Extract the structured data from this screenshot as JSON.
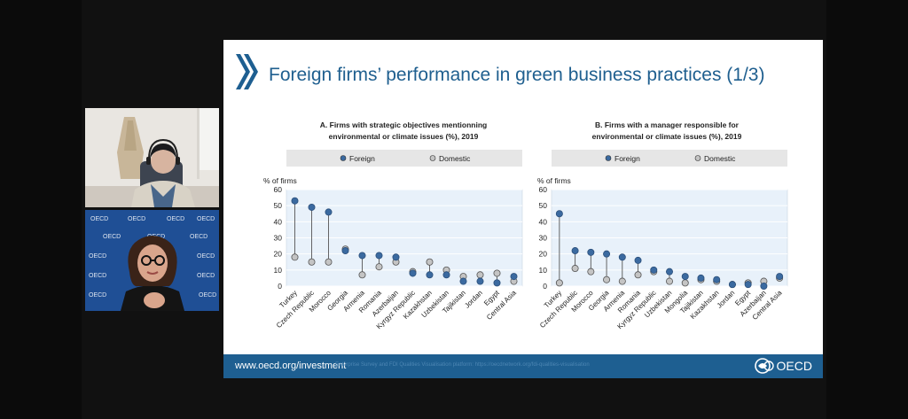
{
  "slide": {
    "title": "Foreign firms’ performance in green business practices (1/3)",
    "footer_url": "www.oecd.org/investment",
    "footer_source": "Enterprise Survey and FDI Qualities Visualisation platform: https://oecdnetwork.org/fdi-qualities-visualisation",
    "logo_text": "OECD"
  },
  "participants": {
    "backdrop_text": "OECD"
  },
  "colors": {
    "foreign": "#3b6aa0",
    "domestic": "#c4c4c4",
    "accent": "#1e5f91",
    "title": "#1f5f8f"
  },
  "chart_data": [
    {
      "type": "dot",
      "title": "A. Firms with strategic objectives mentionning environmental or climate issues (%), 2019",
      "title_lines": [
        "A. Firms with strategic objectives mentionning",
        "environmental or climate issues (%), 2019"
      ],
      "ylabel": "% of firms",
      "ylim": [
        0,
        60
      ],
      "yticks": [
        0,
        10,
        20,
        30,
        40,
        50,
        60
      ],
      "legend": [
        "Foreign",
        "Domestic"
      ],
      "categories": [
        "Turkey",
        "Czech Republic",
        "Morocco",
        "Georgia",
        "Armenia",
        "Romania",
        "Azerbaijan",
        "Kyrgyz Republic",
        "Kazakhstan",
        "Uzbekistan",
        "Tajikistan",
        "Jordan",
        "Egypt",
        "Central Asia"
      ],
      "series": [
        {
          "name": "Foreign",
          "values": [
            53,
            49,
            46,
            22,
            19,
            19,
            18,
            8,
            7,
            7,
            3,
            3,
            2,
            6
          ]
        },
        {
          "name": "Domestic",
          "values": [
            18,
            15,
            15,
            23,
            7,
            12,
            15,
            9,
            15,
            10,
            6,
            7,
            8,
            3
          ]
        }
      ]
    },
    {
      "type": "dot",
      "title": "B. Firms with a manager responsible for environmental or climate issues (%), 2019",
      "title_lines": [
        "B. Firms with a manager responsible for",
        "environmental or climate issues (%), 2019"
      ],
      "ylabel": "% of firms",
      "ylim": [
        0,
        60
      ],
      "yticks": [
        0,
        10,
        20,
        30,
        40,
        50,
        60
      ],
      "legend": [
        "Foreign",
        "Domestic"
      ],
      "categories": [
        "Turkey",
        "Czech Republic",
        "Morocco",
        "Georgia",
        "Armenia",
        "Romania",
        "Kyrgyz Republic",
        "Uzbekistan",
        "Mongolia",
        "Tajikistan",
        "Kazakhstan",
        "Jordan",
        "Egypt",
        "Azerbaijan",
        "Central Asia"
      ],
      "series": [
        {
          "name": "Foreign",
          "values": [
            45,
            22,
            21,
            20,
            18,
            16,
            10,
            9,
            6,
            5,
            4,
            1,
            1,
            0,
            6
          ]
        },
        {
          "name": "Domestic",
          "values": [
            2,
            11,
            9,
            4,
            3,
            7,
            9,
            3,
            2,
            4,
            3,
            1,
            2,
            3,
            5
          ]
        }
      ]
    }
  ]
}
